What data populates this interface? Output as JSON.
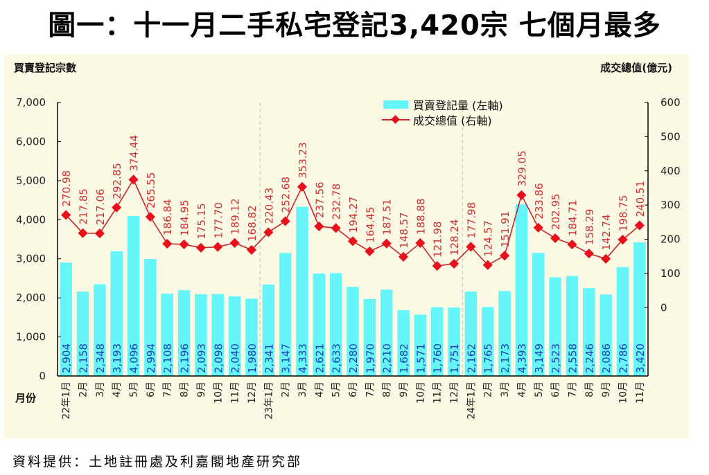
{
  "title": "圖一：十一月二手私宅登記3,420宗  七個月最多",
  "source": "資料提供：土地註冊處及利嘉閣地產研究部",
  "chart_data": {
    "type": "bar+line",
    "title": "圖一：十一月二手私宅登記3,420宗  七個月最多",
    "ylabel_left": "買賣登記宗數",
    "ylabel_right": "成交總值(億元)",
    "xlabel": "月份",
    "ylim_left": [
      0,
      7000
    ],
    "left_ticks": [
      "0",
      "1,000",
      "2,000",
      "3,000",
      "4,000",
      "5,000",
      "6,000",
      "7,000"
    ],
    "ylim_right": [
      -200,
      600
    ],
    "right_ticks": [
      "0",
      "100",
      "200",
      "300",
      "400",
      "500",
      "600"
    ],
    "legend_position": "top-center",
    "colors": {
      "bar": "#66f5fa",
      "line": "#c8232a",
      "marker": "#e8101a",
      "bar_label": "#1a3fb8",
      "line_label": "#d03030"
    },
    "categories": [
      "22年1月",
      "2月",
      "3月",
      "4月",
      "5月",
      "6月",
      "7月",
      "8月",
      "9月",
      "10月",
      "11月",
      "12月",
      "23年1月",
      "2月",
      "3月",
      "4月",
      "5月",
      "6月",
      "7月",
      "8月",
      "9月",
      "10月",
      "11月",
      "12月",
      "24年1月",
      "2月",
      "3月",
      "4月",
      "5月",
      "6月",
      "7月",
      "8月",
      "9月",
      "10月",
      "11月"
    ],
    "series": [
      {
        "name": "買賣登記量 (左軸)",
        "type": "bar",
        "axis": "left",
        "values": [
          2904,
          2158,
          2348,
          3193,
          4096,
          2994,
          2108,
          2196,
          2093,
          2098,
          2040,
          1980,
          2341,
          3147,
          4333,
          2621,
          2633,
          2280,
          1970,
          2210,
          1682,
          1571,
          1760,
          1751,
          2162,
          1765,
          2173,
          4393,
          3149,
          2523,
          2558,
          2246,
          2086,
          2786,
          3420
        ]
      },
      {
        "name": "成交總值 (右軸)",
        "type": "line",
        "axis": "right",
        "values": [
          270.98,
          217.85,
          217.06,
          292.85,
          374.44,
          265.55,
          186.84,
          184.95,
          175.15,
          177.7,
          189.12,
          168.82,
          220.43,
          252.68,
          353.23,
          237.56,
          232.78,
          194.27,
          164.45,
          187.51,
          148.57,
          188.88,
          121.98,
          128.24,
          177.98,
          124.57,
          151.91,
          329.05,
          233.86,
          202.95,
          184.71,
          158.29,
          142.74,
          198.75,
          240.51
        ]
      }
    ]
  }
}
